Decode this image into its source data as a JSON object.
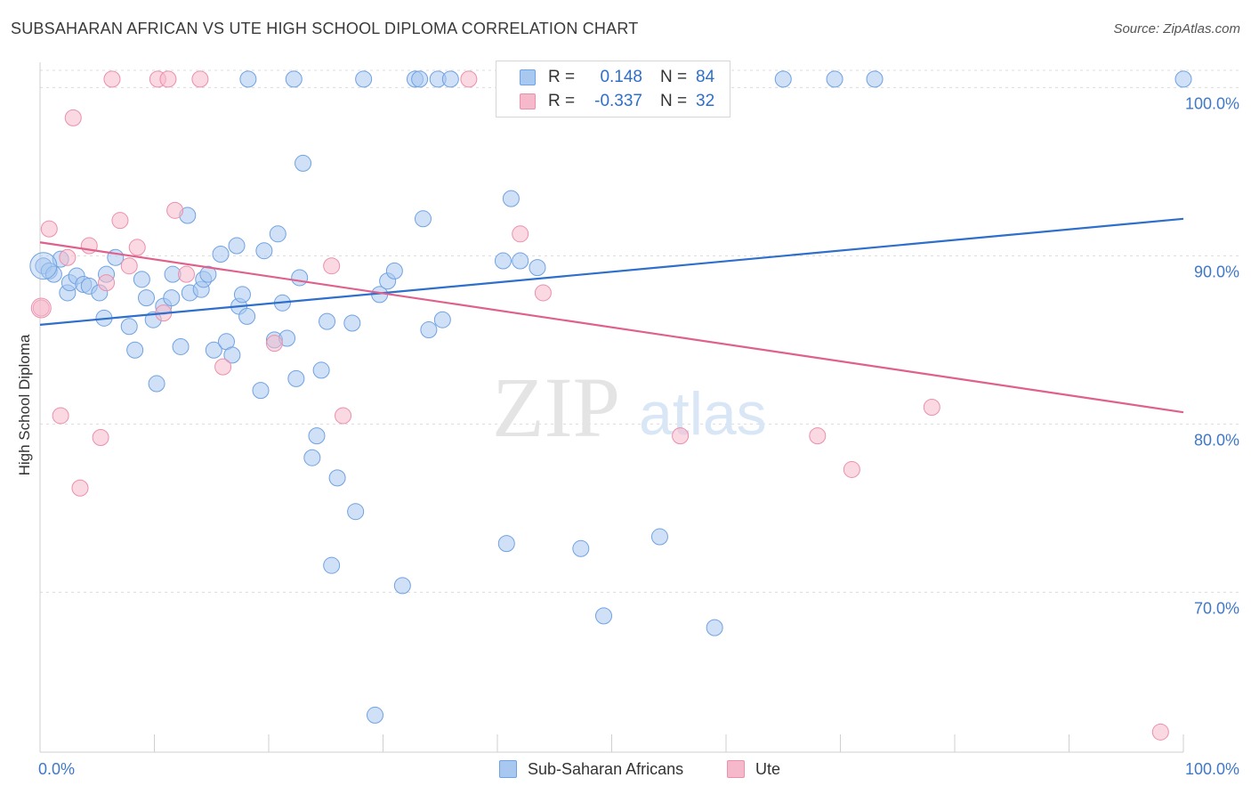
{
  "title": "SUBSAHARAN AFRICAN VS UTE HIGH SCHOOL DIPLOMA CORRELATION CHART",
  "source": "Source: ZipAtlas.com",
  "watermark": {
    "zip": "ZIP",
    "atlas": "atlas"
  },
  "legend": {
    "rows": [
      {
        "r_label": "R =",
        "r_value": "0.148",
        "n_label": "N =",
        "n_value": "84",
        "color": "#a9c8f0"
      },
      {
        "r_label": "R =",
        "r_value": "-0.337",
        "n_label": "N =",
        "n_value": "32",
        "color": "#f6b9cb"
      }
    ]
  },
  "bottom_legend": [
    {
      "label": "Sub-Saharan Africans",
      "color": "#a9c8f0"
    },
    {
      "label": "Ute",
      "color": "#f6b9cb"
    }
  ],
  "chart_data": {
    "type": "scatter",
    "title": "SUBSAHARAN AFRICAN VS UTE HIGH SCHOOL DIPLOMA CORRELATION CHART",
    "xlabel": "",
    "ylabel": "High School Diploma",
    "xlim": [
      0,
      100
    ],
    "ylim": [
      60.5,
      101.5
    ],
    "x_tick_labels": [
      "0.0%",
      "100.0%"
    ],
    "y_ticks": [
      {
        "value": 100,
        "label": "100.0%"
      },
      {
        "value": 90,
        "label": "90.0%"
      },
      {
        "value": 80,
        "label": "80.0%"
      },
      {
        "value": 70,
        "label": "70.0%"
      }
    ],
    "grid": true,
    "legend_position": "top-center",
    "series": [
      {
        "name": "Sub-Saharan Africans",
        "color": "#6fa2e2",
        "fill": "#a9c8f0",
        "trend_color": "#2e6fcc",
        "trend": [
          [
            0,
            85.9
          ],
          [
            100,
            92.2
          ]
        ],
        "points": [
          [
            0.3,
            89.4
          ],
          [
            0.8,
            89.1
          ],
          [
            1.2,
            88.9
          ],
          [
            1.8,
            89.8
          ],
          [
            2.4,
            87.8
          ],
          [
            2.6,
            88.4
          ],
          [
            3.2,
            88.8
          ],
          [
            3.8,
            88.3
          ],
          [
            4.3,
            88.2
          ],
          [
            5.2,
            87.8
          ],
          [
            5.8,
            88.9
          ],
          [
            5.6,
            86.3
          ],
          [
            6.6,
            89.9
          ],
          [
            7.8,
            85.8
          ],
          [
            8.3,
            84.4
          ],
          [
            8.9,
            88.6
          ],
          [
            9.3,
            87.5
          ],
          [
            9.9,
            86.2
          ],
          [
            10.2,
            82.4
          ],
          [
            10.8,
            87.0
          ],
          [
            11.5,
            87.5
          ],
          [
            11.6,
            88.9
          ],
          [
            12.3,
            84.6
          ],
          [
            12.9,
            92.4
          ],
          [
            13.1,
            87.8
          ],
          [
            14.1,
            88.0
          ],
          [
            14.3,
            88.6
          ],
          [
            14.7,
            88.9
          ],
          [
            15.2,
            84.4
          ],
          [
            15.8,
            90.1
          ],
          [
            16.3,
            84.9
          ],
          [
            16.8,
            84.1
          ],
          [
            17.2,
            90.6
          ],
          [
            17.4,
            87.0
          ],
          [
            17.7,
            87.7
          ],
          [
            18.1,
            86.4
          ],
          [
            19.3,
            82.0
          ],
          [
            19.6,
            90.3
          ],
          [
            20.5,
            85.0
          ],
          [
            20.8,
            91.3
          ],
          [
            21.2,
            87.2
          ],
          [
            21.6,
            85.1
          ],
          [
            22.4,
            82.7
          ],
          [
            22.7,
            88.7
          ],
          [
            23.0,
            95.5
          ],
          [
            23.8,
            78.0
          ],
          [
            24.2,
            79.3
          ],
          [
            24.6,
            83.2
          ],
          [
            25.1,
            86.1
          ],
          [
            25.5,
            71.6
          ],
          [
            26.0,
            76.8
          ],
          [
            27.3,
            86.0
          ],
          [
            27.6,
            74.8
          ],
          [
            28.3,
            100.5
          ],
          [
            29.3,
            62.7
          ],
          [
            29.7,
            87.7
          ],
          [
            30.4,
            88.5
          ],
          [
            31.0,
            89.1
          ],
          [
            31.7,
            70.4
          ],
          [
            32.8,
            100.5
          ],
          [
            33.2,
            100.5
          ],
          [
            33.5,
            92.2
          ],
          [
            34.0,
            85.6
          ],
          [
            34.8,
            100.5
          ],
          [
            35.2,
            86.2
          ],
          [
            35.9,
            100.5
          ],
          [
            40.5,
            89.7
          ],
          [
            40.8,
            72.9
          ],
          [
            41.2,
            93.4
          ],
          [
            42.0,
            89.7
          ],
          [
            43.5,
            89.3
          ],
          [
            46.2,
            100.5
          ],
          [
            47.3,
            72.6
          ],
          [
            49.3,
            68.6
          ],
          [
            54.0,
            100.5
          ],
          [
            54.2,
            73.3
          ],
          [
            58.5,
            100.5
          ],
          [
            59.0,
            67.9
          ],
          [
            65.0,
            100.5
          ],
          [
            69.5,
            100.5
          ],
          [
            73.0,
            100.5
          ],
          [
            100.0,
            100.5
          ],
          [
            22.2,
            100.5
          ],
          [
            18.2,
            100.5
          ]
        ]
      },
      {
        "name": "Ute",
        "color": "#ec8fac",
        "fill": "#f6b9cb",
        "trend_color": "#e0608c",
        "trend": [
          [
            0,
            90.8
          ],
          [
            100,
            80.7
          ]
        ],
        "points": [
          [
            0.1,
            86.9
          ],
          [
            0.8,
            91.6
          ],
          [
            1.8,
            80.5
          ],
          [
            2.4,
            89.9
          ],
          [
            2.9,
            98.2
          ],
          [
            3.5,
            76.2
          ],
          [
            4.3,
            90.6
          ],
          [
            5.3,
            79.2
          ],
          [
            5.8,
            88.4
          ],
          [
            6.3,
            100.5
          ],
          [
            7.0,
            92.1
          ],
          [
            7.8,
            89.4
          ],
          [
            8.5,
            90.5
          ],
          [
            10.3,
            100.5
          ],
          [
            10.8,
            86.6
          ],
          [
            11.2,
            100.5
          ],
          [
            11.8,
            92.7
          ],
          [
            12.8,
            88.9
          ],
          [
            14.0,
            100.5
          ],
          [
            16.0,
            83.4
          ],
          [
            20.5,
            84.8
          ],
          [
            25.5,
            89.4
          ],
          [
            26.5,
            80.5
          ],
          [
            42.0,
            91.3
          ],
          [
            44.0,
            87.8
          ],
          [
            53.0,
            100.5
          ],
          [
            56.0,
            79.3
          ],
          [
            68.0,
            79.3
          ],
          [
            71.0,
            77.3
          ],
          [
            78.0,
            81.0
          ],
          [
            98.0,
            61.7
          ],
          [
            37.5,
            100.5
          ]
        ]
      }
    ]
  }
}
